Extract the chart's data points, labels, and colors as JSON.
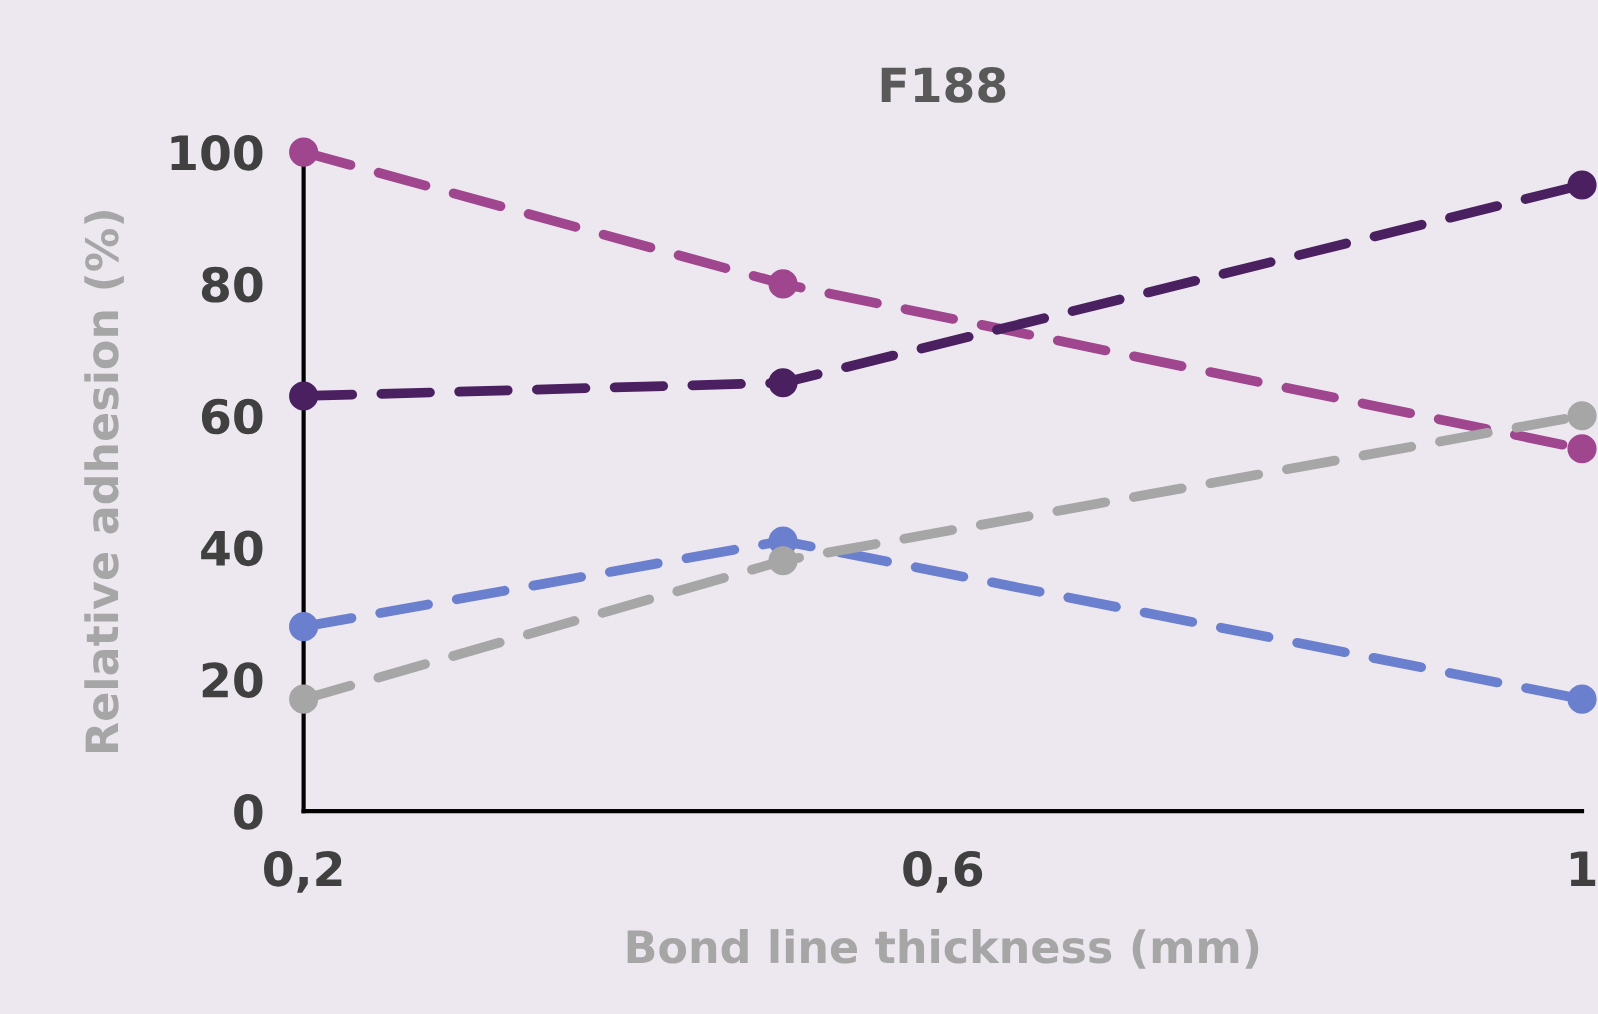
{
  "chart_data": {
    "type": "line",
    "title": "F188",
    "xlabel": "Bond line thickness (mm)",
    "ylabel": "Relative adhesion (%)",
    "x": [
      0.2,
      0.5,
      1.0
    ],
    "series": [
      {
        "color": "#a0468f",
        "values": [
          100,
          80,
          55
        ]
      },
      {
        "color": "#4a2060",
        "values": [
          63,
          65,
          95
        ]
      },
      {
        "color": "#6b7fcf",
        "values": [
          28,
          41,
          17
        ]
      },
      {
        "color": "#a6a6a6",
        "values": [
          17,
          38,
          60
        ]
      }
    ],
    "xlim": [
      0.2,
      1.0
    ],
    "xticks": [
      {
        "value": 0.2,
        "label": "0,2"
      },
      {
        "value": 0.6,
        "label": "0,6"
      },
      {
        "value": 1.0,
        "label": "1"
      }
    ],
    "ylim": [
      0,
      100
    ],
    "yticks": [
      0,
      20,
      40,
      60,
      80,
      100
    ],
    "grid": false,
    "legend": false,
    "marker": "circle",
    "line_style": "dashed"
  }
}
